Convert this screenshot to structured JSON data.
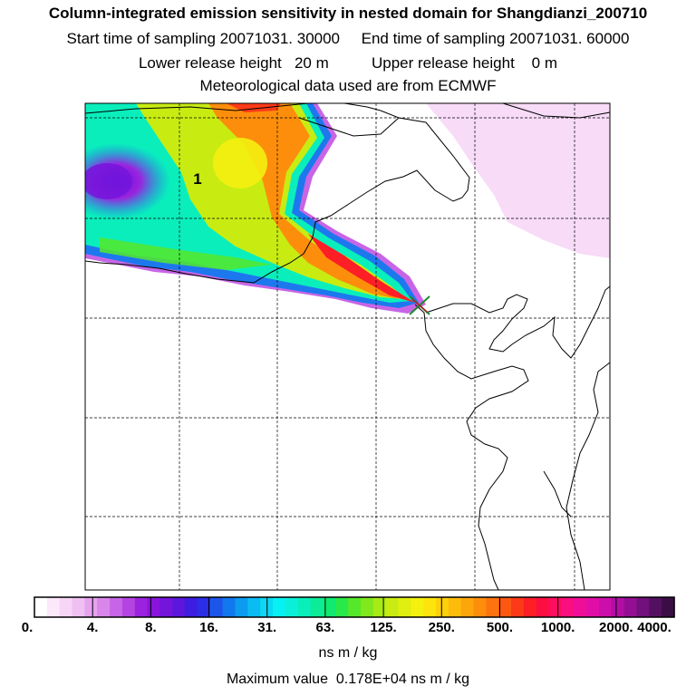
{
  "header": {
    "title": "Column-integrated emission sensitivity in nested domain for Shangdianzi_200710",
    "sampling_line": "Start time of sampling 20071031. 30000     End time of sampling 20071031. 60000",
    "release_line": "Lower release height   20 m          Upper release height    0 m",
    "met_line": "Meteorological data used are from ECMWF"
  },
  "map": {
    "plume_label": "1",
    "receptor_marker": "receptor-cross"
  },
  "colorbar": {
    "tick_labels": [
      "0.",
      "4.",
      "8.",
      "16.",
      "31.",
      "63.",
      "125.",
      "250.",
      "500.",
      "1000.",
      "2000.",
      "4000."
    ],
    "colors": [
      "#ffffff",
      "#fbe8fb",
      "#f6d5f6",
      "#f0c0f2",
      "#e6a3ee",
      "#d986ea",
      "#c865e6",
      "#b444e2",
      "#9b23de",
      "#8a14dc",
      "#7415dc",
      "#5b17dc",
      "#3d1de0",
      "#2a2ee6",
      "#1d55ea",
      "#1278ee",
      "#0c9bf0",
      "#0bbcf2",
      "#0ad8f4",
      "#07f0f2",
      "#0af0d8",
      "#0aeebc",
      "#0cec98",
      "#10ea70",
      "#28e84a",
      "#55e82a",
      "#80e81c",
      "#a8ea16",
      "#c8ec12",
      "#e0ee10",
      "#f4f010",
      "#fde40c",
      "#fdd00c",
      "#fdbc0c",
      "#fda60c",
      "#fd8e0c",
      "#fd740e",
      "#fd5812",
      "#fd3a18",
      "#fd1e26",
      "#fd0e40",
      "#fd0e60",
      "#fa0e80",
      "#f00e98",
      "#e00ea6",
      "#cc0eaa",
      "#b20ea4",
      "#940e94",
      "#72107c",
      "#541060",
      "#3a0e44"
    ],
    "units": "ns m / kg",
    "max_value": "Maximum value  0.178E+04 ns m / kg"
  }
}
